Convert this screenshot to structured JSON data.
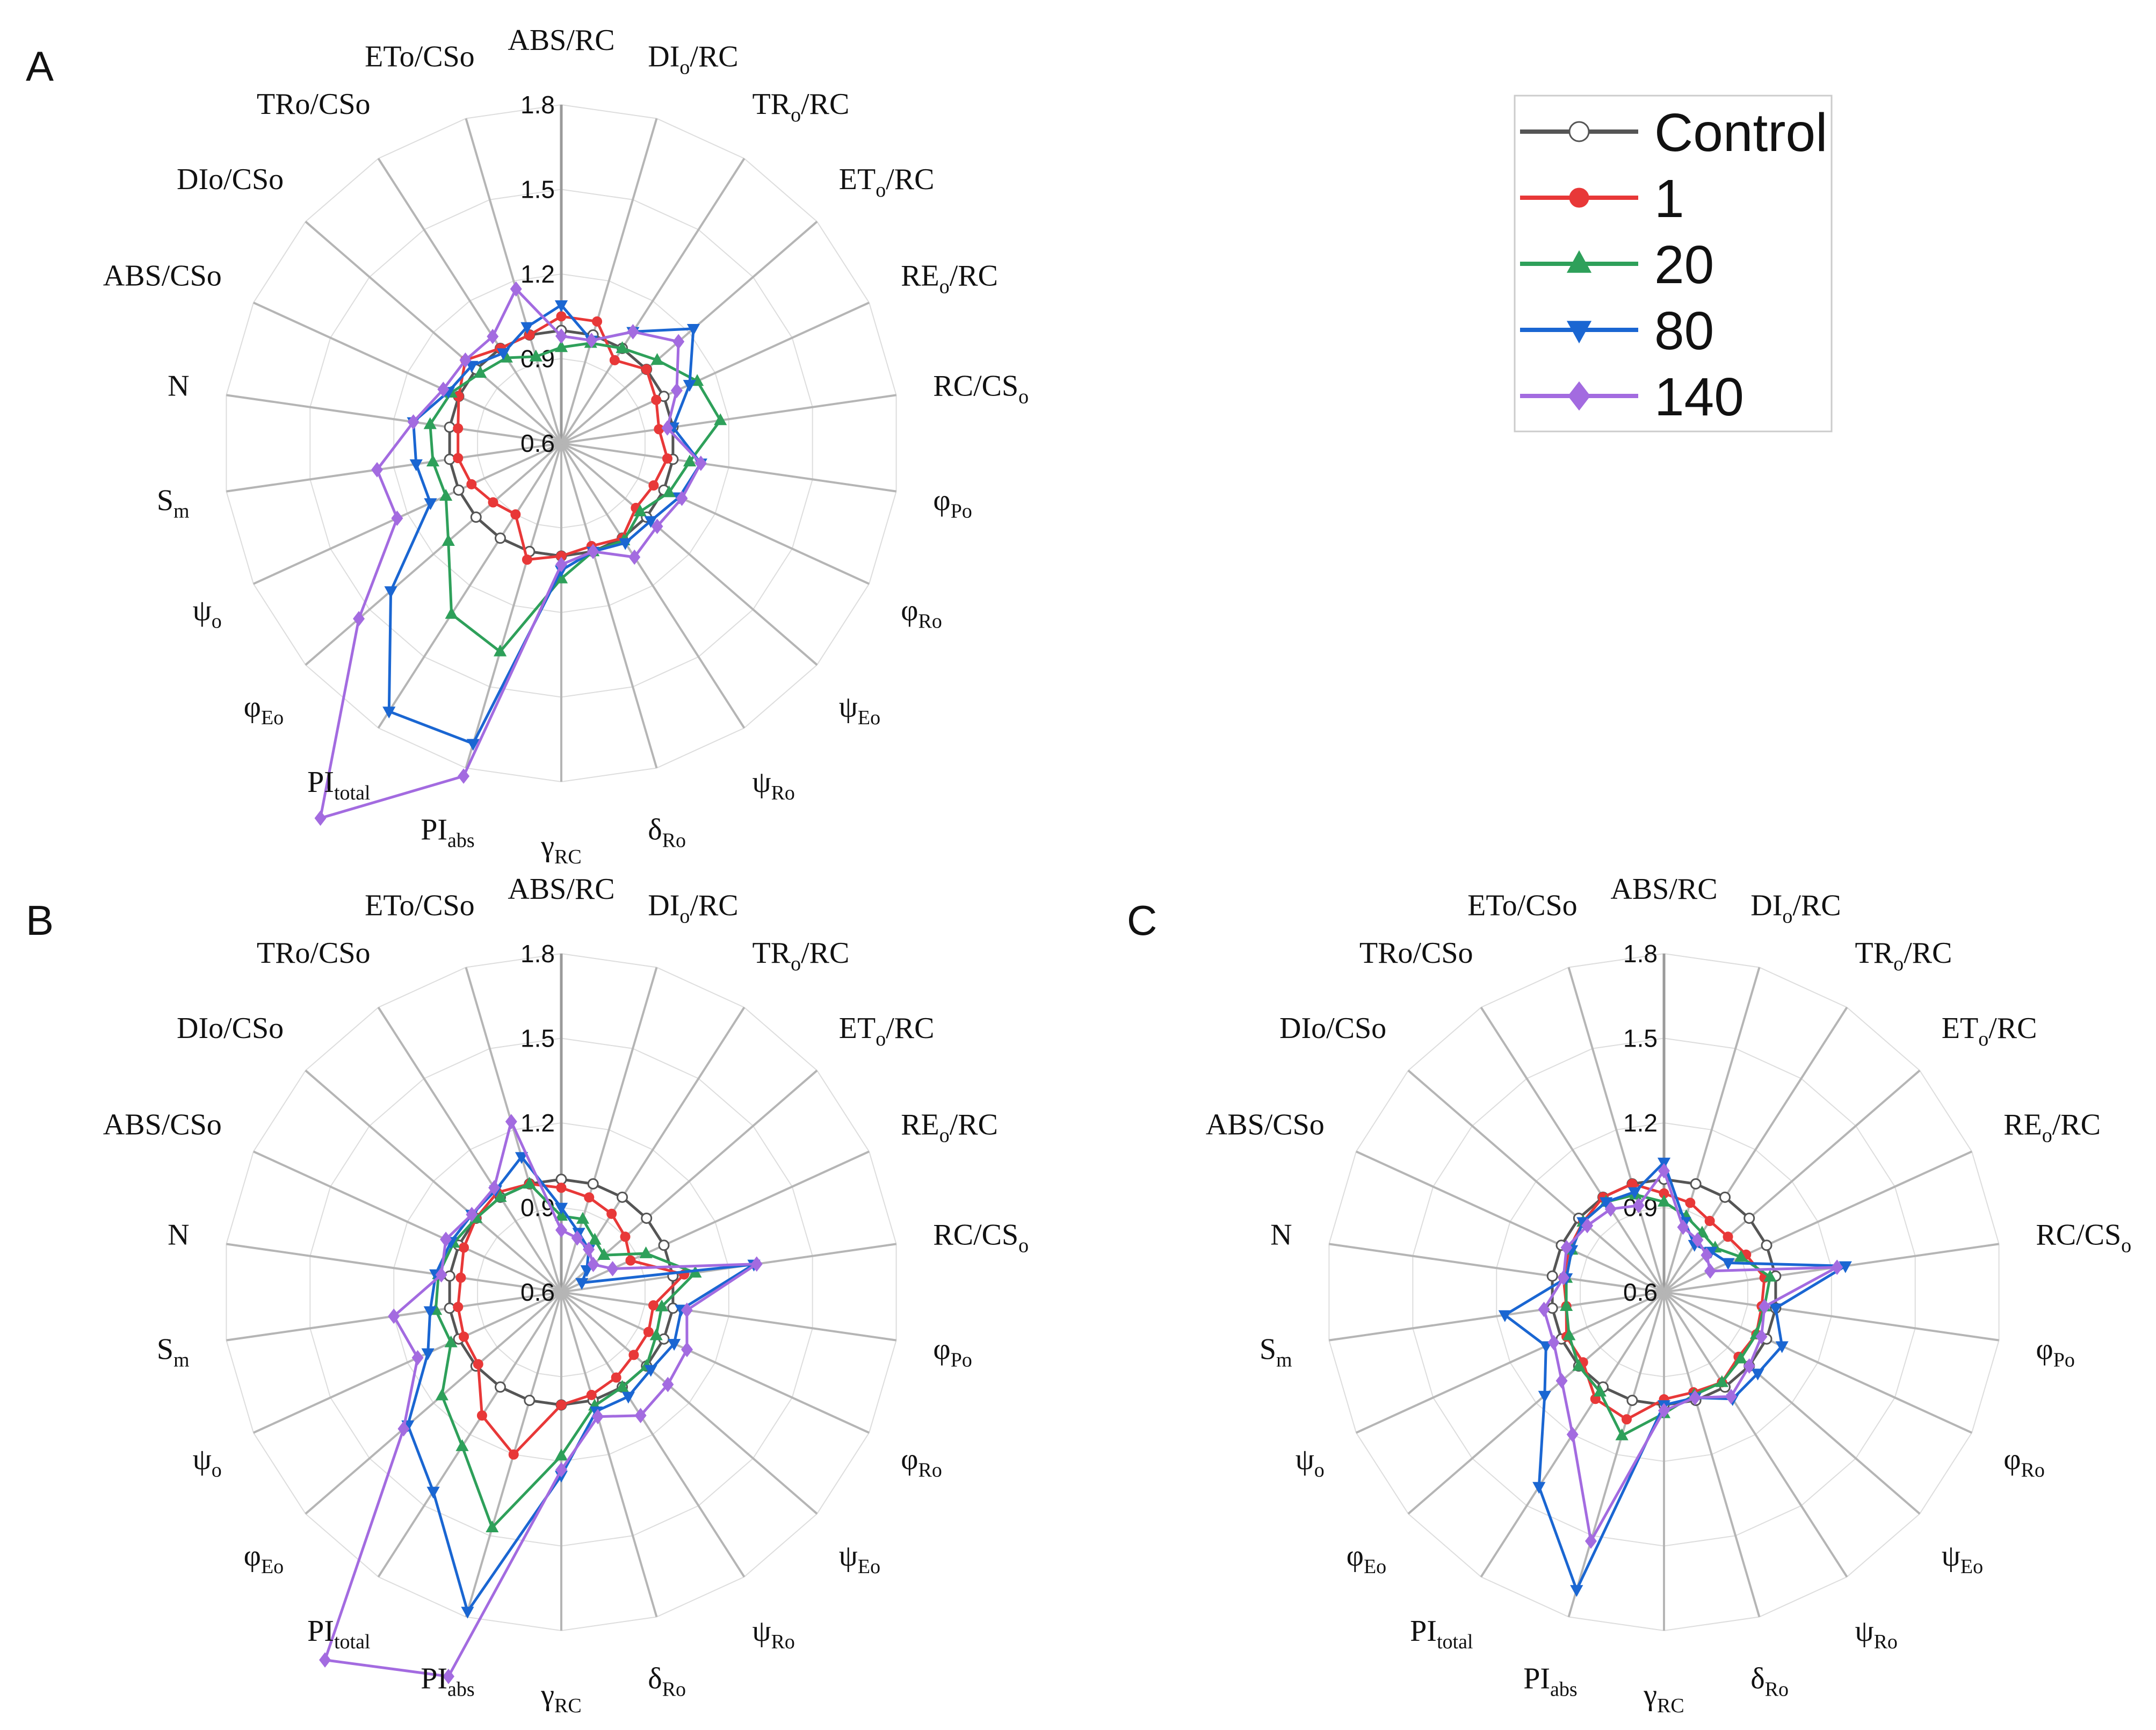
{
  "chart_data": [
    {
      "type": "radar",
      "panel": "A",
      "axes": [
        "ABS/RC",
        "DI_o/RC",
        "TR_o/RC",
        "ET_o/RC",
        "RE_o/RC",
        "RC/CS_o",
        "φ_Po",
        "φ_Ro",
        "ψ_Eo",
        "ψ_Ro",
        "δ_Ro",
        "γ_RC",
        "PI_abs",
        "PI_total",
        "φ_Eo",
        "ψ_o",
        "S_m",
        "N",
        "ABS/CSo",
        "DIo/CSo",
        "TRo/CSo",
        "ETo/CSo"
      ],
      "axis_labels": [
        {
          "main": "ABS/RC"
        },
        {
          "main": "DI",
          "sub": "o",
          "rest": "/RC"
        },
        {
          "main": "TR",
          "sub": "o",
          "rest": "/RC"
        },
        {
          "main": "ET",
          "sub": "o",
          "rest": "/RC"
        },
        {
          "main": "RE",
          "sub": "o",
          "rest": "/RC"
        },
        {
          "main": "RC/CS",
          "sub": "o"
        },
        {
          "main": "φ",
          "sub": "Po"
        },
        {
          "main": "φ",
          "sub": "Ro"
        },
        {
          "main": "ψ",
          "sub": "Eo"
        },
        {
          "main": "ψ",
          "sub": "Ro"
        },
        {
          "main": "δ",
          "sub": "Ro"
        },
        {
          "main": "γ",
          "sub": "RC"
        },
        {
          "main": "PI",
          "sub": "abs"
        },
        {
          "main": "PI",
          "sub": "total"
        },
        {
          "main": "φ",
          "sub": "Eo"
        },
        {
          "main": "ψ",
          "sub": "o"
        },
        {
          "main": "S",
          "sub": "m"
        },
        {
          "main": "N"
        },
        {
          "main": "ABS/CSo"
        },
        {
          "main": "DIo/CSo"
        },
        {
          "main": "TRo/CSo"
        },
        {
          "main": "ETo/CSo"
        }
      ],
      "radial_range": [
        0.6,
        1.8
      ],
      "radial_ticks": [
        0.6,
        0.9,
        1.2,
        1.5,
        1.8
      ],
      "series": [
        {
          "name": "Control",
          "values": [
            1,
            1,
            1,
            1,
            1,
            1,
            1,
            1,
            1,
            1,
            1,
            1,
            1,
            1,
            1,
            1,
            1,
            1,
            1,
            1,
            1,
            1
          ]
        },
        {
          "name": "1",
          "values": [
            1.05,
            1.05,
            0.95,
            1.0,
            0.97,
            0.95,
            0.98,
            0.96,
            0.95,
            1.0,
            0.98,
            1.0,
            1.03,
            0.9,
            0.92,
            0.95,
            0.97,
            0.97,
            1.0,
            1.05,
            1.0,
            1.0
          ]
        },
        {
          "name": "20",
          "values": [
            0.94,
            0.97,
            1.0,
            1.05,
            1.13,
            1.17,
            1.06,
            1.02,
            0.97,
            1.01,
            1.0,
            1.08,
            1.37,
            1.32,
            1.13,
            1.05,
            1.06,
            1.07,
            1.03,
            0.98,
            0.96,
            0.92
          ]
        },
        {
          "name": "80",
          "values": [
            1.09,
            0.98,
            1.07,
            1.22,
            1.1,
            1.0,
            1.1,
            1.06,
            1.02,
            1.02,
            1.0,
            1.05,
            1.71,
            1.73,
            1.4,
            1.11,
            1.12,
            1.13,
            1.04,
            1.02,
            0.98,
            1.03
          ]
        },
        {
          "name": "140",
          "values": [
            0.98,
            0.98,
            1.07,
            1.15,
            1.05,
            0.98,
            1.1,
            1.07,
            1.05,
            1.08,
            1.0,
            1.03,
            1.83,
            2.18,
            1.55,
            1.24,
            1.26,
            1.13,
            1.06,
            1.05,
            1.05,
            1.17
          ]
        }
      ]
    },
    {
      "type": "radar",
      "panel": "B",
      "axes": [
        "ABS/RC",
        "DI_o/RC",
        "TR_o/RC",
        "ET_o/RC",
        "RE_o/RC",
        "RC/CS_o",
        "φ_Po",
        "φ_Ro",
        "ψ_Eo",
        "ψ_Ro",
        "δ_Ro",
        "γ_RC",
        "PI_abs",
        "PI_total",
        "φ_Eo",
        "ψ_o",
        "S_m",
        "N",
        "ABS/CSo",
        "DIo/CSo",
        "TRo/CSo",
        "ETo/CSo"
      ],
      "axis_labels": [
        {
          "main": "ABS/RC"
        },
        {
          "main": "DI",
          "sub": "o",
          "rest": "/RC"
        },
        {
          "main": "TR",
          "sub": "o",
          "rest": "/RC"
        },
        {
          "main": "ET",
          "sub": "o",
          "rest": "/RC"
        },
        {
          "main": "RE",
          "sub": "o",
          "rest": "/RC"
        },
        {
          "main": "RC/CS",
          "sub": "o"
        },
        {
          "main": "φ",
          "sub": "Po"
        },
        {
          "main": "φ",
          "sub": "Ro"
        },
        {
          "main": "ψ",
          "sub": "Eo"
        },
        {
          "main": "ψ",
          "sub": "Ro"
        },
        {
          "main": "δ",
          "sub": "Ro"
        },
        {
          "main": "γ",
          "sub": "RC"
        },
        {
          "main": "PI",
          "sub": "abs"
        },
        {
          "main": "PI",
          "sub": "total"
        },
        {
          "main": "φ",
          "sub": "Eo"
        },
        {
          "main": "ψ",
          "sub": "o"
        },
        {
          "main": "S",
          "sub": "m"
        },
        {
          "main": "N"
        },
        {
          "main": "ABS/CSo"
        },
        {
          "main": "DIo/CSo"
        },
        {
          "main": "TRo/CSo"
        },
        {
          "main": "ETo/CSo"
        }
      ],
      "radial_range": [
        0.6,
        1.8
      ],
      "radial_ticks": [
        0.6,
        0.9,
        1.2,
        1.5,
        1.8
      ],
      "series": [
        {
          "name": "Control",
          "values": [
            1,
            1,
            1,
            1,
            1,
            1,
            1,
            1,
            1,
            1,
            1,
            1,
            1,
            1,
            1,
            1,
            1,
            1,
            1,
            1,
            1,
            1
          ]
        },
        {
          "name": "1",
          "values": [
            0.97,
            0.95,
            0.93,
            0.9,
            0.87,
            1.04,
            0.93,
            0.94,
            0.94,
            0.96,
            0.98,
            1.0,
            1.2,
            1.12,
            0.99,
            0.98,
            0.97,
            0.96,
            0.98,
            1.0,
            1.02,
            1.0
          ]
        },
        {
          "name": "20",
          "values": [
            0.87,
            0.87,
            0.82,
            0.8,
            0.93,
            1.08,
            0.96,
            0.97,
            1.0,
            1.0,
            1.02,
            1.18,
            1.47,
            1.25,
            1.16,
            1.03,
            1.05,
            1.04,
            1.02,
            1.0,
            1.0,
            1.0
          ]
        },
        {
          "name": "80",
          "values": [
            0.9,
            0.82,
            0.78,
            0.72,
            0.68,
            1.29,
            1.03,
            1.04,
            1.02,
            1.04,
            1.04,
            1.25,
            1.78,
            1.44,
            1.32,
            1.12,
            1.07,
            1.05,
            1.03,
            1.02,
            1.03,
            1.1
          ]
        },
        {
          "name": "140",
          "values": [
            0.82,
            0.8,
            0.78,
            0.75,
            0.8,
            1.3,
            1.05,
            1.09,
            1.1,
            1.12,
            1.06,
            1.23,
            2.02,
            2.15,
            1.34,
            1.16,
            1.2,
            1.03,
            1.05,
            1.02,
            1.04,
            1.23
          ]
        }
      ]
    },
    {
      "type": "radar",
      "panel": "C",
      "axes": [
        "ABS/RC",
        "DI_o/RC",
        "TR_o/RC",
        "ET_o/RC",
        "RE_o/RC",
        "RC/CS_o",
        "φ_Po",
        "φ_Ro",
        "ψ_Eo",
        "ψ_Ro",
        "δ_Ro",
        "γ_RC",
        "PI_abs",
        "PI_total",
        "φ_Eo",
        "ψ_o",
        "S_m",
        "N",
        "ABS/CSo",
        "DIo/CSo",
        "TRo/CSo",
        "ETo/CSo"
      ],
      "axis_labels": [
        {
          "main": "ABS/RC"
        },
        {
          "main": "DI",
          "sub": "o",
          "rest": "/RC"
        },
        {
          "main": "TR",
          "sub": "o",
          "rest": "/RC"
        },
        {
          "main": "ET",
          "sub": "o",
          "rest": "/RC"
        },
        {
          "main": "RE",
          "sub": "o",
          "rest": "/RC"
        },
        {
          "main": "RC/CS",
          "sub": "o"
        },
        {
          "main": "φ",
          "sub": "Po"
        },
        {
          "main": "φ",
          "sub": "Ro"
        },
        {
          "main": "ψ",
          "sub": "Eo"
        },
        {
          "main": "ψ",
          "sub": "Ro"
        },
        {
          "main": "δ",
          "sub": "Ro"
        },
        {
          "main": "γ",
          "sub": "RC"
        },
        {
          "main": "PI",
          "sub": "abs"
        },
        {
          "main": "PI",
          "sub": "total"
        },
        {
          "main": "φ",
          "sub": "Eo"
        },
        {
          "main": "ψ",
          "sub": "o"
        },
        {
          "main": "S",
          "sub": "m"
        },
        {
          "main": "N"
        },
        {
          "main": "ABS/CSo"
        },
        {
          "main": "DIo/CSo"
        },
        {
          "main": "TRo/CSo"
        },
        {
          "main": "ETo/CSo"
        }
      ],
      "radial_range": [
        0.6,
        1.8
      ],
      "radial_ticks": [
        0.6,
        0.9,
        1.2,
        1.5,
        1.8
      ],
      "series": [
        {
          "name": "Control",
          "values": [
            1,
            1,
            1,
            1,
            1,
            1,
            1,
            1,
            1,
            1,
            1,
            1,
            1,
            1,
            1,
            1,
            1,
            1,
            1,
            1,
            1,
            1
          ]
        },
        {
          "name": "1",
          "values": [
            0.95,
            0.93,
            0.9,
            0.9,
            0.92,
            0.96,
            0.95,
            0.96,
            0.95,
            0.98,
            0.97,
            0.98,
            1.07,
            1.05,
            0.98,
            0.98,
            0.95,
            0.96,
            0.97,
            0.98,
            1.0,
            1.0
          ]
        },
        {
          "name": "20",
          "values": [
            0.92,
            0.88,
            0.85,
            0.84,
            0.9,
            0.98,
            0.96,
            0.96,
            0.96,
            0.98,
            0.98,
            1.03,
            1.13,
            1.02,
            1.0,
            0.97,
            0.95,
            0.95,
            0.96,
            0.98,
            0.98,
            0.96
          ]
        },
        {
          "name": "80",
          "values": [
            1.06,
            0.86,
            0.8,
            0.82,
            0.85,
            1.25,
            1.0,
            1.06,
            1.04,
            1.05,
            0.99,
            1.0,
            1.7,
            1.42,
            1.16,
            1.06,
            1.17,
            0.95,
            0.96,
            0.98,
            0.98,
            0.97
          ]
        },
        {
          "name": "140",
          "values": [
            1.03,
            0.84,
            0.82,
            0.8,
            0.78,
            1.22,
            0.96,
            0.98,
            1.0,
            1.04,
            0.99,
            1.02,
            1.52,
            1.2,
            1.08,
            1.03,
            1.03,
            0.96,
            0.98,
            0.96,
            0.95,
            0.92
          ]
        }
      ]
    }
  ],
  "legend": {
    "entries": [
      {
        "label": "Control",
        "color": "#555555",
        "marker": "circle-open"
      },
      {
        "label": "1",
        "color": "#e83838",
        "marker": "circle"
      },
      {
        "label": "20",
        "color": "#2ea05a",
        "marker": "triangle-up"
      },
      {
        "label": "80",
        "color": "#1a66d2",
        "marker": "triangle-down"
      },
      {
        "label": "140",
        "color": "#a36be0",
        "marker": "diamond"
      }
    ]
  },
  "colors": {
    "grid_ring": "#dddddd",
    "spoke": "#b5b5b5",
    "spoke_main": "#9a9a9a",
    "legend_border": "#cccccc"
  }
}
